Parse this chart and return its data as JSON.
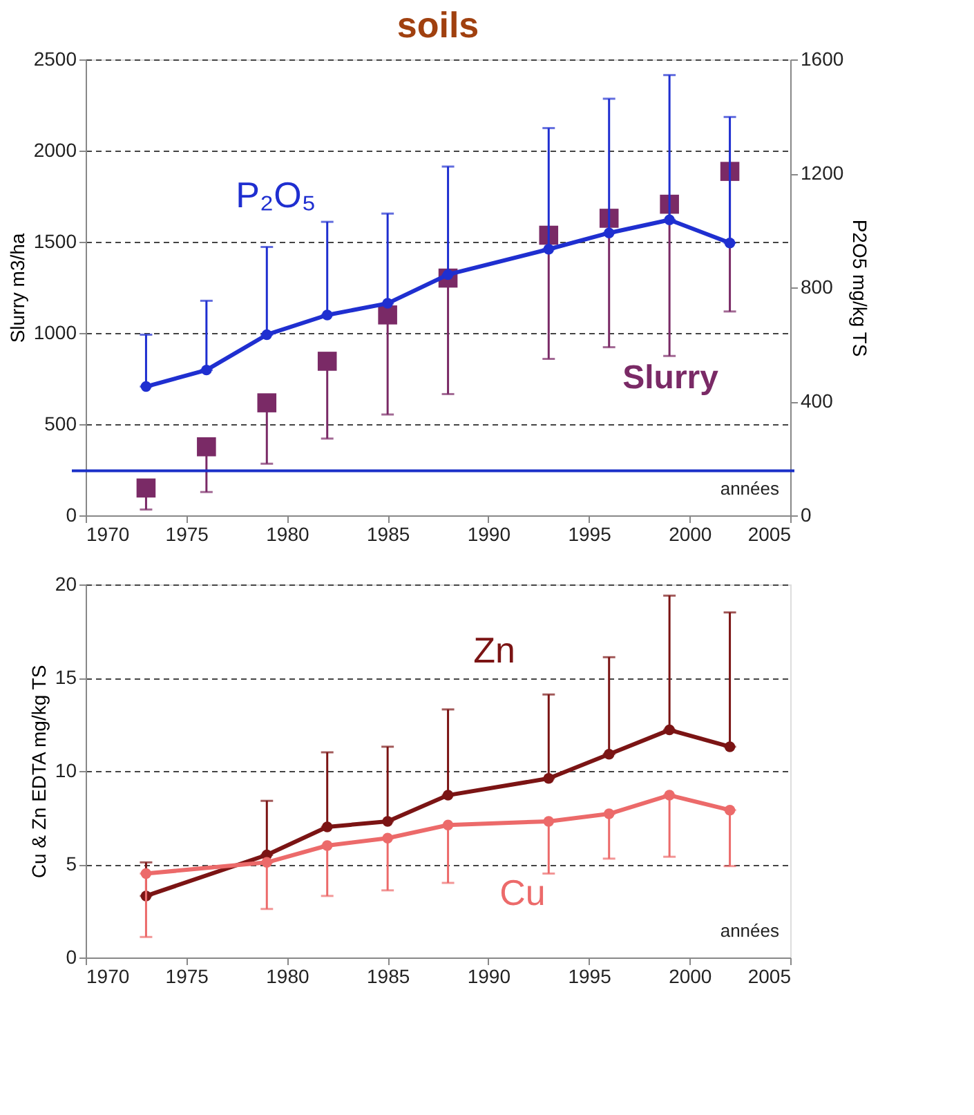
{
  "chart_data": [
    {
      "type": "line",
      "title": "soils",
      "xlabel": "années",
      "ylabel": "Slurry  m3/ha",
      "y2label": "P2O5 mg/kg TS",
      "xlim": [
        1970,
        2005
      ],
      "xticks": [
        1970,
        1975,
        1980,
        1985,
        1990,
        1995,
        2000,
        2005
      ],
      "ylim": [
        0,
        2500
      ],
      "yticks": [
        0,
        500,
        1000,
        1500,
        2000,
        2500
      ],
      "y2lim": [
        0,
        1600
      ],
      "y2ticks": [
        0,
        400,
        800,
        1200,
        1600
      ],
      "grid": "y",
      "legend": false,
      "ref_lines": [
        {
          "axis": "y",
          "value": 244,
          "color": "#1a2fc8"
        }
      ],
      "series": [
        {
          "name": "Slurry",
          "type": "scatter",
          "marker": "square",
          "color": "#7a2a66",
          "x": [
            1973,
            1976,
            1979,
            1982,
            1985,
            1988,
            1993,
            1996,
            1999,
            2002
          ],
          "values": [
            150,
            376,
            617,
            845,
            1099,
            1301,
            1536,
            1629,
            1706,
            1886
          ],
          "errors": [
            [
              32,
              150
            ],
            [
              128,
              376
            ],
            [
              283,
              617
            ],
            [
              421,
              845
            ],
            [
              553,
              1099
            ],
            [
              665,
              1301
            ],
            [
              858,
              1536
            ],
            [
              922,
              1629
            ],
            [
              874,
              1706
            ],
            [
              1118,
              1886
            ]
          ]
        },
        {
          "name": "P₂O₅",
          "type": "line",
          "marker": "circle",
          "axis": "y2",
          "color": "#1f2fd0",
          "x": [
            1973,
            1976,
            1979,
            1982,
            1985,
            1988,
            1993,
            1996,
            1999,
            2002
          ],
          "values": [
            452,
            510,
            634,
            703,
            744,
            845,
            934,
            991,
            1037,
            956
          ],
          "errors": [
            [
              452,
              634
            ],
            [
              510,
              753
            ],
            [
              634,
              942
            ],
            [
              703,
              1030
            ],
            [
              744,
              1059
            ],
            [
              845,
              1224
            ],
            [
              934,
              1359
            ],
            [
              991,
              1462
            ],
            [
              1037,
              1545
            ],
            [
              956,
              1398
            ]
          ]
        }
      ]
    },
    {
      "type": "line",
      "xlabel": "années",
      "ylabel": "Cu & Zn EDTA mg/kg TS",
      "xlim": [
        1970,
        2005
      ],
      "xticks": [
        1970,
        1975,
        1980,
        1985,
        1990,
        1995,
        2000,
        2005
      ],
      "ylim": [
        0,
        20
      ],
      "yticks": [
        0,
        5,
        10,
        15,
        20
      ],
      "grid": "y",
      "legend": false,
      "marker": "circle",
      "series": [
        {
          "name": "Zn",
          "color": "#7b1414",
          "x": [
            1973,
            1979,
            1982,
            1985,
            1988,
            1993,
            1996,
            1999,
            2002
          ],
          "values": [
            3.3,
            5.5,
            7.0,
            7.3,
            8.7,
            9.6,
            10.9,
            12.2,
            11.3
          ],
          "errors": [
            [
              3.3,
              5.1
            ],
            [
              5.5,
              8.4
            ],
            [
              7.0,
              11.0
            ],
            [
              7.3,
              11.3
            ],
            [
              8.7,
              13.3
            ],
            [
              9.6,
              14.1
            ],
            [
              10.9,
              16.1
            ],
            [
              12.2,
              19.4
            ],
            [
              11.3,
              18.5
            ]
          ]
        },
        {
          "name": "Cu",
          "color": "#ec6a6a",
          "x": [
            1973,
            1979,
            1982,
            1985,
            1988,
            1993,
            1996,
            1999,
            2002
          ],
          "values": [
            4.5,
            5.1,
            6.0,
            6.4,
            7.1,
            7.3,
            7.7,
            8.7,
            7.9
          ],
          "errors": [
            [
              1.1,
              4.5
            ],
            [
              2.6,
              5.1
            ],
            [
              3.3,
              6.0
            ],
            [
              3.6,
              6.4
            ],
            [
              4.0,
              7.1
            ],
            [
              4.5,
              7.3
            ],
            [
              5.3,
              7.7
            ],
            [
              5.4,
              8.7
            ],
            [
              4.9,
              7.9
            ]
          ]
        }
      ]
    }
  ]
}
